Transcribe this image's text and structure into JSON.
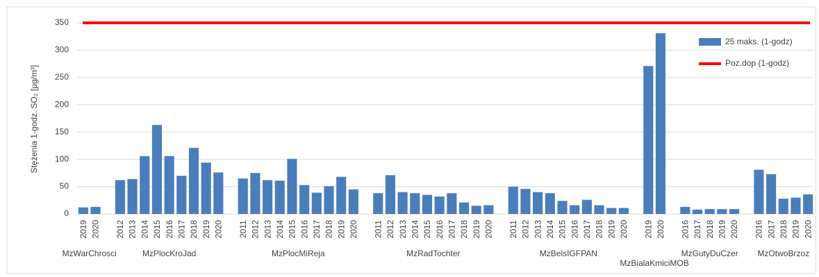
{
  "chart_data": {
    "type": "bar",
    "y_label": "Stężenia 1-godz. SO₂ [µg/m³]",
    "series_name": "25 maks. (1-godz)",
    "color": "#4a7ebb",
    "limit": {
      "name": "Poz.dop (1-godz)",
      "value": 350,
      "color": "#ff0000"
    },
    "ylim": [
      0,
      350
    ],
    "yticks": [
      0,
      50,
      100,
      150,
      200,
      250,
      300,
      350
    ],
    "grid": true,
    "groups": [
      {
        "name": "MzWarChrosci",
        "categories": [
          "2019",
          "2020"
        ],
        "values": [
          12,
          13
        ]
      },
      {
        "name": "MzPlocKroJad",
        "categories": [
          "2012",
          "2013",
          "2014",
          "2015",
          "2016",
          "2017",
          "2018",
          "2019",
          "2020"
        ],
        "values": [
          62,
          64,
          106,
          163,
          106,
          70,
          121,
          94,
          76
        ]
      },
      {
        "name": "MzPlocMiReja",
        "categories": [
          "2011",
          "2012",
          "2013",
          "2014",
          "2015",
          "2016",
          "2017",
          "2018",
          "2019",
          "2020"
        ],
        "values": [
          65,
          75,
          62,
          61,
          101,
          53,
          39,
          51,
          68,
          45
        ]
      },
      {
        "name": "MzRadTochter",
        "categories": [
          "2011",
          "2012",
          "2013",
          "2014",
          "2015",
          "2016",
          "2017",
          "2018",
          "2019",
          "2020"
        ],
        "values": [
          38,
          71,
          40,
          38,
          35,
          32,
          38,
          21,
          15,
          16
        ]
      },
      {
        "name": "MzBelsIGFPAN",
        "categories": [
          "2011",
          "2012",
          "2013",
          "2014",
          "2015",
          "2016",
          "2017",
          "2018",
          "2019",
          "2020"
        ],
        "values": [
          50,
          46,
          40,
          38,
          24,
          16,
          26,
          16,
          11,
          11
        ]
      },
      {
        "name": "MzBialaKmiciMOB",
        "categories": [
          "2019",
          "2020"
        ],
        "values": [
          271,
          331
        ]
      },
      {
        "name": "MzGutyDuCzer",
        "categories": [
          "2016",
          "2017",
          "2018",
          "2019",
          "2020"
        ],
        "values": [
          13,
          8,
          9,
          9,
          9
        ]
      },
      {
        "name": "MzOtwoBrzoz",
        "categories": [
          "2016",
          "2017",
          "2018",
          "2019",
          "2020"
        ],
        "values": [
          81,
          73,
          28,
          30,
          36
        ]
      }
    ]
  }
}
